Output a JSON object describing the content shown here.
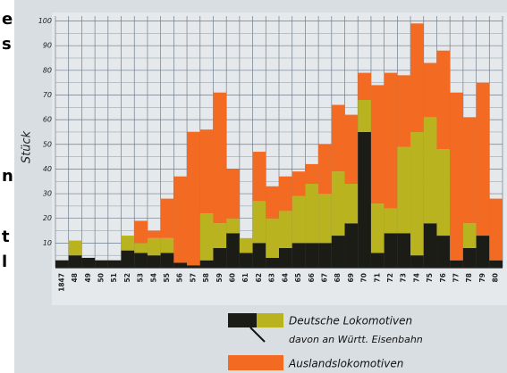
{
  "side_text": [
    "e",
    "s",
    "n",
    "t",
    "l"
  ],
  "chart_data": {
    "type": "stacked-bar",
    "y_label": "Stück",
    "categories": [
      "1847",
      "48",
      "49",
      "50",
      "51",
      "52",
      "53",
      "54",
      "55",
      "56",
      "57",
      "58",
      "59",
      "60",
      "61",
      "62",
      "63",
      "64",
      "65",
      "66",
      "67",
      "68",
      "69",
      "70",
      "71",
      "72",
      "73",
      "74",
      "75",
      "76",
      "77",
      "78",
      "79",
      "80"
    ],
    "series": [
      {
        "name": "davon an Württ. Eisenbahn",
        "color": "#1c1c16",
        "values": [
          3,
          5,
          4,
          3,
          3,
          7,
          6,
          5,
          6,
          2,
          1,
          3,
          8,
          14,
          6,
          10,
          4,
          8,
          10,
          10,
          10,
          13,
          18,
          55,
          6,
          14,
          14,
          5,
          18,
          13,
          3,
          8,
          13,
          3
        ]
      },
      {
        "name": "Deutsche Lokomotiven",
        "color": "#b8b31e",
        "values": [
          0,
          6,
          0,
          0,
          0,
          6,
          4,
          7,
          6,
          0,
          0,
          19,
          10,
          6,
          6,
          17,
          16,
          15,
          19,
          24,
          20,
          26,
          16,
          13,
          20,
          10,
          35,
          50,
          43,
          35,
          0,
          10,
          0,
          0
        ]
      },
      {
        "name": "Auslandslokomotiven",
        "color": "#f36a22",
        "values": [
          0,
          0,
          0,
          0,
          0,
          0,
          9,
          3,
          16,
          35,
          54,
          34,
          53,
          20,
          0,
          20,
          13,
          14,
          10,
          8,
          20,
          27,
          28,
          11,
          48,
          55,
          29,
          44,
          22,
          40,
          68,
          43,
          62,
          25
        ]
      }
    ],
    "ylim": [
      0,
      102
    ],
    "yticks": [
      10,
      20,
      30,
      40,
      50,
      60,
      70,
      80,
      90,
      100
    ],
    "grid": true
  }
}
